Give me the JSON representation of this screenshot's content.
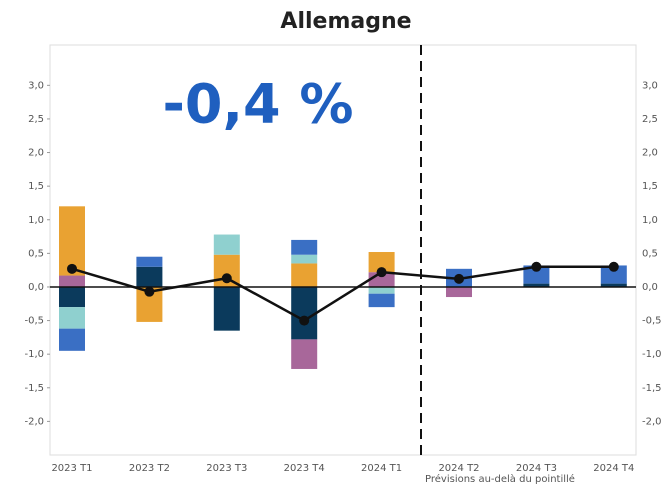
{
  "chart_data": {
    "type": "bar",
    "title": "Allemagne",
    "annotation": "-0,4 %",
    "note": "Prévisions au-delà du pointillé",
    "categories": [
      "2023 T1",
      "2023 T2",
      "2023 T3",
      "2023 T4",
      "2024 T1",
      "2024 T2",
      "2024 T3",
      "2024 T4"
    ],
    "series": [
      {
        "color": "#0b3a5c",
        "values": [
          -0.3,
          0.3,
          -0.65,
          -0.78,
          null,
          null,
          0.05,
          0.05
        ]
      },
      {
        "color": "#a8679a",
        "values": [
          0.17,
          null,
          null,
          -0.44,
          0.22,
          -0.15,
          null,
          null
        ]
      },
      {
        "color": "#e9a232",
        "values": [
          1.03,
          -0.52,
          0.48,
          0.35,
          0.3,
          null,
          null,
          null
        ]
      },
      {
        "color": "#8fd0cf",
        "values": [
          -0.32,
          null,
          0.3,
          0.13,
          -0.1,
          null,
          null,
          null
        ]
      },
      {
        "color": "#3a6fc4",
        "values": [
          -0.33,
          0.15,
          null,
          0.22,
          -0.2,
          0.27,
          0.27,
          0.27
        ]
      }
    ],
    "line": {
      "color": "#111111",
      "values": [
        0.27,
        -0.07,
        0.13,
        -0.5,
        0.22,
        0.12,
        0.3,
        0.3
      ]
    },
    "ylim": [
      -2.5,
      3.6
    ],
    "yticks": [
      {
        "value": -2,
        "label": "-2,0"
      },
      {
        "value": -1.5,
        "label": "-1,5"
      },
      {
        "value": -1,
        "label": "-1,0"
      },
      {
        "value": -0.5,
        "label": "-0,5"
      },
      {
        "value": 0,
        "label": "0,0"
      },
      {
        "value": 0.5,
        "label": "0,5"
      },
      {
        "value": 1,
        "label": "1,0"
      },
      {
        "value": 1.5,
        "label": "1,5"
      },
      {
        "value": 2,
        "label": "2,0"
      },
      {
        "value": 2.5,
        "label": "2,5"
      },
      {
        "value": 3,
        "label": "3,0"
      }
    ],
    "grid": false
  }
}
